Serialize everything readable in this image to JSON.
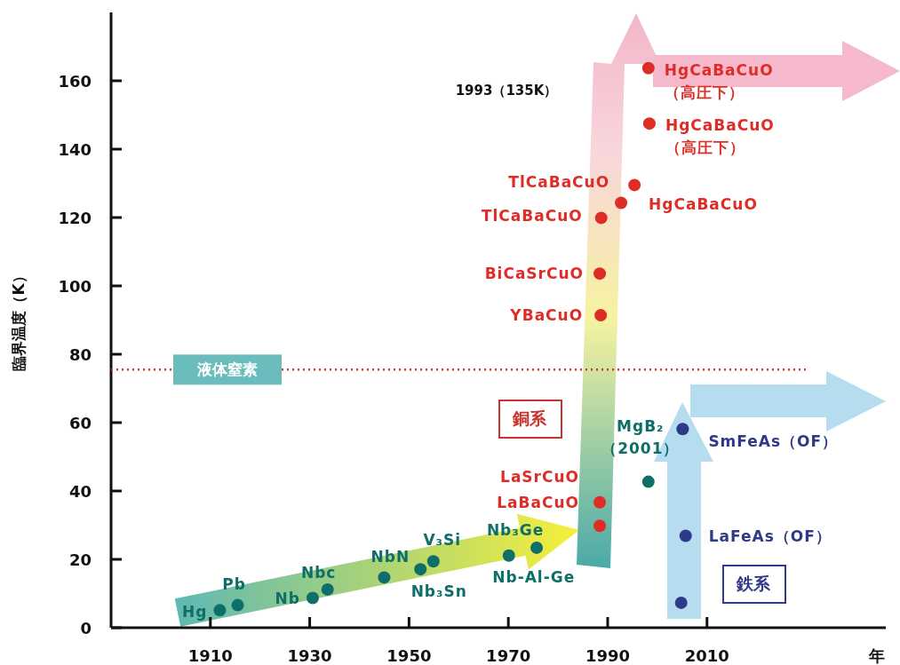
{
  "chart_data": {
    "type": "scatter",
    "xlabel": "年",
    "ylabel": "臨界温度（K）",
    "xlim": [
      1890,
      2046
    ],
    "ylim": [
      0,
      180
    ],
    "xticks": [
      1910,
      1930,
      1950,
      1970,
      1990,
      2010
    ],
    "yticks": [
      0,
      20,
      40,
      60,
      80,
      100,
      120,
      140,
      160
    ],
    "marker": "circle",
    "series": [
      {
        "color": "#0e6e68",
        "x": [
          1911.9,
          1915.5,
          1930.6,
          1933.6,
          1945.0,
          1952.3,
          1954.9,
          1970.1,
          1975.7,
          1998.2
        ],
        "values": [
          5.1,
          6.6,
          8.7,
          11.2,
          14.7,
          17.1,
          19.4,
          21.1,
          23.4,
          42.7
        ]
      },
      {
        "color": "#de2d26",
        "x": [
          1988.4,
          1988.4,
          1988.6,
          1988.4,
          1988.7,
          1992.7,
          1995.4,
          1998.4,
          1998.2
        ],
        "values": [
          29.8,
          36.7,
          91.4,
          103.6,
          119.9,
          124.3,
          129.5,
          147.5,
          163.7
        ]
      },
      {
        "color": "#2e3a87",
        "x": [
          2004.8,
          2005.7,
          2005.1
        ],
        "values": [
          7.3,
          26.9,
          58.1
        ]
      }
    ],
    "ref_lines": [
      {
        "axis": "y",
        "value": 75.5,
        "label": "液体窒素",
        "color": "#d03a2a",
        "line_style": "dotted"
      }
    ],
    "annotations": [
      {
        "text": "Hg",
        "x": 1911.9,
        "y": 5.1
      },
      {
        "text": "Pb",
        "x": 1915.5,
        "y": 6.6
      },
      {
        "text": "Nb",
        "x": 1930.6,
        "y": 8.7
      },
      {
        "text": "Nbc",
        "x": 1933.6,
        "y": 11.2
      },
      {
        "text": "NbN",
        "x": 1945.0,
        "y": 14.7
      },
      {
        "text": "Nb₃Sn",
        "x": 1952.3,
        "y": 17.1
      },
      {
        "text": "V₃Si",
        "x": 1954.9,
        "y": 19.4
      },
      {
        "text": "Nb-Al-Ge",
        "x": 1970.1,
        "y": 21.1
      },
      {
        "text": "Nb₃Ge",
        "x": 1975.7,
        "y": 23.4
      },
      {
        "text": "LaSrCuO",
        "x": 1988.4,
        "y": 36.7
      },
      {
        "text": "LaBaCuO",
        "x": 1988.4,
        "y": 29.8
      },
      {
        "text": "YBaCuO",
        "x": 1988.6,
        "y": 91.4
      },
      {
        "text": "BiCaSrCuO",
        "x": 1988.4,
        "y": 103.6
      },
      {
        "text": "TlCaBaCuO",
        "x": 1988.7,
        "y": 119.9
      },
      {
        "text": "TlCaBaCuO",
        "x": 1995.4,
        "y": 129.5
      },
      {
        "text": "HgCaBaCuO",
        "x": 1992.7,
        "y": 124.3
      },
      {
        "text": "HgCaBaCuO\n（高圧下）",
        "x": 1998.4,
        "y": 147.5
      },
      {
        "text": "HgCaBaCuO\n（高圧下）",
        "x": 1998.2,
        "y": 163.7
      },
      {
        "text": "MgB₂\n（2001）",
        "x": 1998.2,
        "y": 42.7
      },
      {
        "text": "SmFeAs（OF）",
        "x": 2005.1,
        "y": 58.1
      },
      {
        "text": "LaFeAs（OF）",
        "x": 2005.7,
        "y": 26.9
      },
      "1993（135K）",
      "銅系",
      "鉄系"
    ]
  }
}
